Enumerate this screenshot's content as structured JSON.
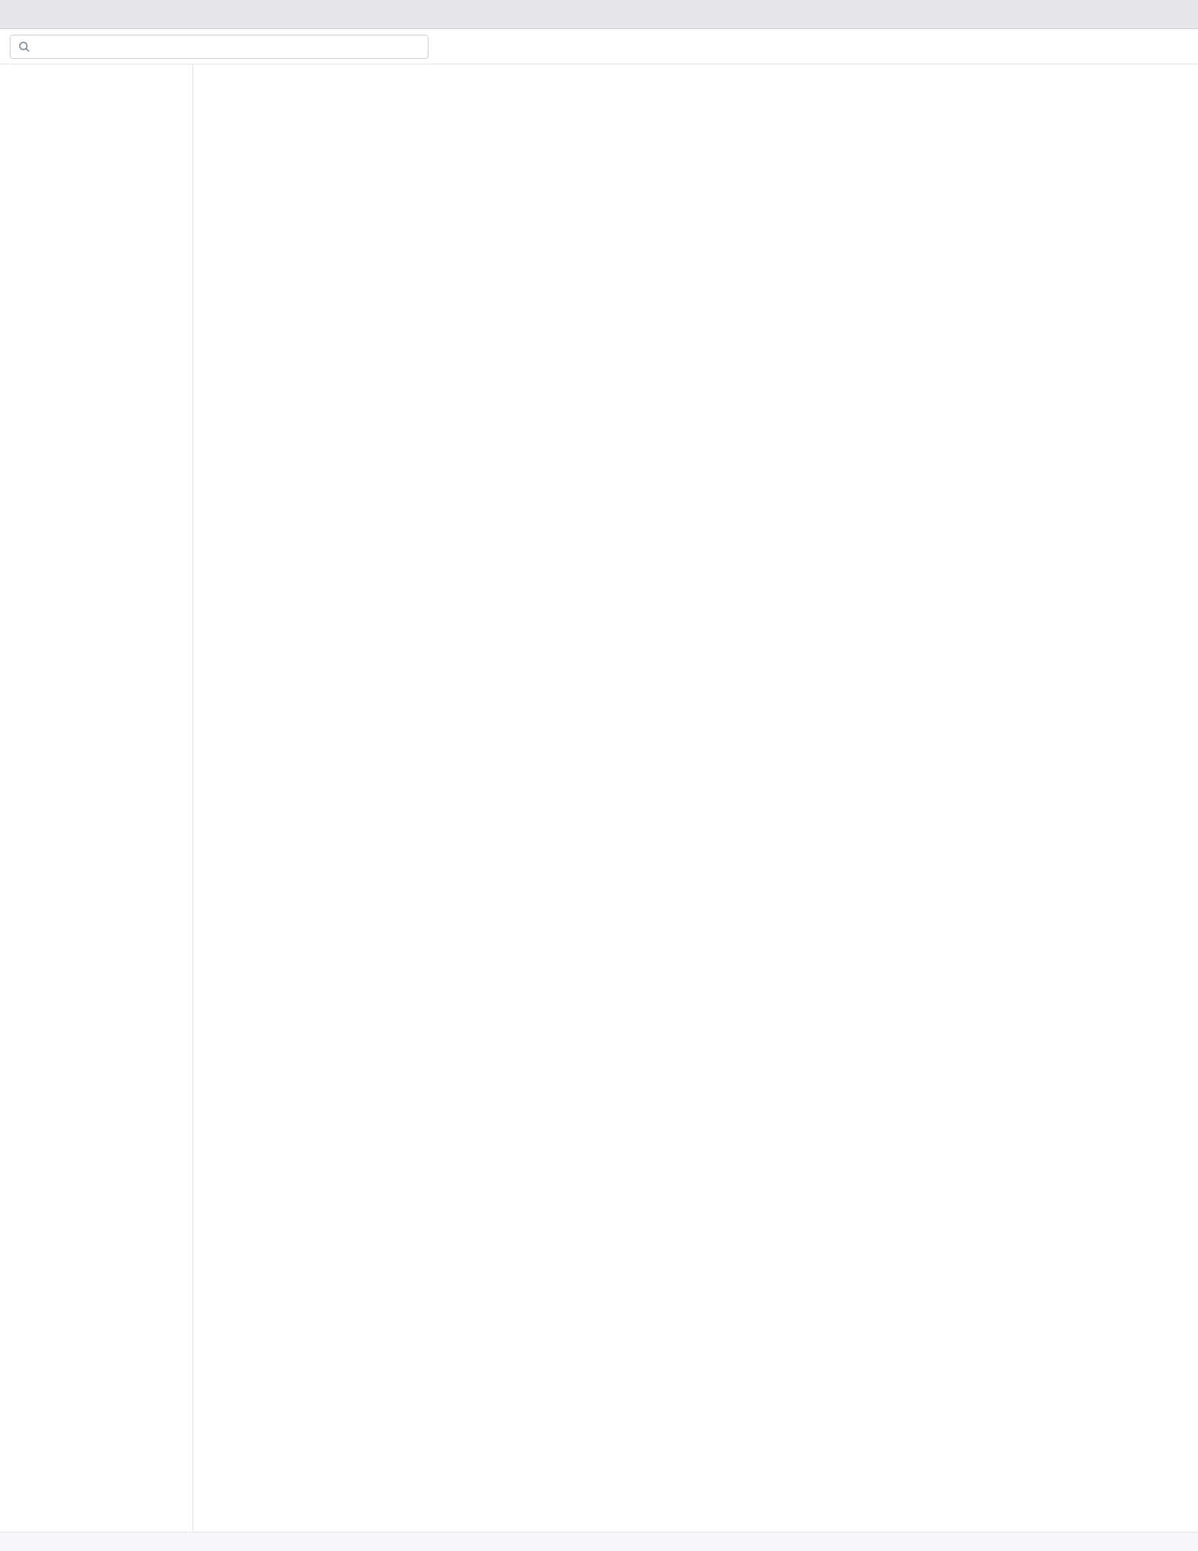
{
  "window": {
    "title": "",
    "minimize_glyph": "",
    "maximize_glyph": "",
    "close_glyph": ""
  },
  "toolbar": {
    "search_placeholder": "",
    "search_value": ""
  },
  "sidebar": {
    "items": []
  },
  "main": {
    "page_title": "",
    "note": ""
  },
  "status": {
    "text": ""
  }
}
